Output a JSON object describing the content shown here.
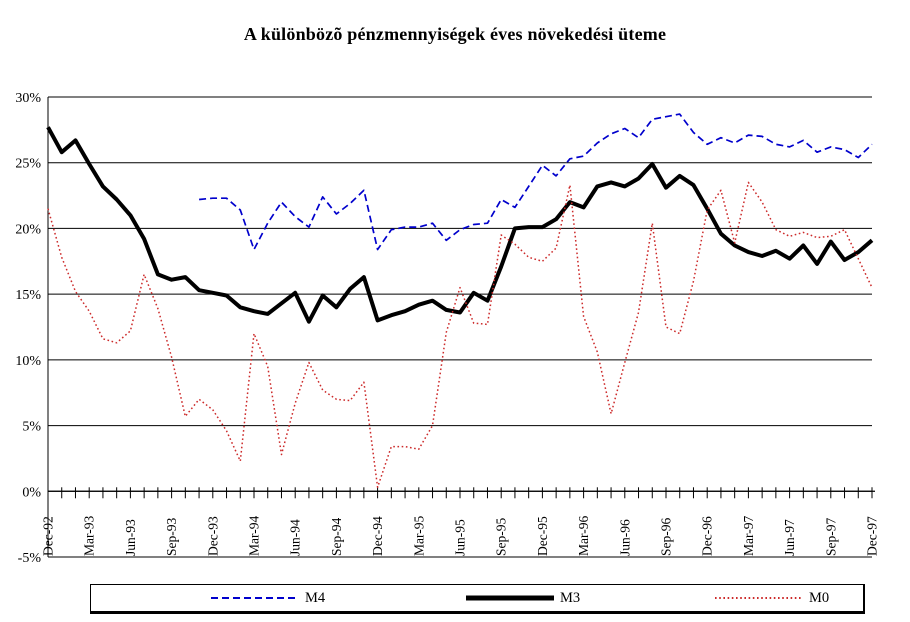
{
  "title": "A különbözõ pénzmennyiségek éves növekedési üteme",
  "legend": [
    {
      "label": "M4",
      "color": "#0000cc",
      "style": "dashed"
    },
    {
      "label": "M3",
      "color": "#000000",
      "style": "solid"
    },
    {
      "label": "M0",
      "color": "#cc2a2a",
      "style": "dotted"
    }
  ],
  "chart_data": {
    "type": "line",
    "title": "A különbözõ pénzmennyiségek éves növekedési üteme",
    "xlabel": "",
    "ylabel": "",
    "ylim": [
      -5,
      30
    ],
    "y_tick_step": 5,
    "y_tick_labels": [
      "-5%",
      "0%",
      "5%",
      "10%",
      "15%",
      "20%",
      "25%",
      "30%"
    ],
    "x_label_every_n_months": 3,
    "x_axis_tick_labels": [
      "Dec-92",
      "Mar-93",
      "Jun-93",
      "Sep-93",
      "Dec-93",
      "Mar-94",
      "Jun-94",
      "Sep-94",
      "Dec-94",
      "Mar-95",
      "Jun-95",
      "Sep-95",
      "Dec-95",
      "Mar-96",
      "Jun-96",
      "Sep-96",
      "Dec-96",
      "Mar-97",
      "Jun-97",
      "Sep-97",
      "Dec-97"
    ],
    "grid": true,
    "legend_position": "bottom",
    "months": [
      "Dec-92",
      "Jan-93",
      "Feb-93",
      "Mar-93",
      "Apr-93",
      "May-93",
      "Jun-93",
      "Jul-93",
      "Aug-93",
      "Sep-93",
      "Oct-93",
      "Nov-93",
      "Dec-93",
      "Jan-94",
      "Feb-94",
      "Mar-94",
      "Apr-94",
      "May-94",
      "Jun-94",
      "Jul-94",
      "Aug-94",
      "Sep-94",
      "Oct-94",
      "Nov-94",
      "Dec-94",
      "Jan-95",
      "Feb-95",
      "Mar-95",
      "Apr-95",
      "May-95",
      "Jun-95",
      "Jul-95",
      "Aug-95",
      "Sep-95",
      "Oct-95",
      "Nov-95",
      "Dec-95",
      "Jan-96",
      "Feb-96",
      "Mar-96",
      "Apr-96",
      "May-96",
      "Jun-96",
      "Jul-96",
      "Aug-96",
      "Sep-96",
      "Oct-96",
      "Nov-96",
      "Dec-96",
      "Jan-97",
      "Feb-97",
      "Mar-97",
      "Apr-97",
      "May-97",
      "Jun-97",
      "Jul-97",
      "Aug-97",
      "Sep-97",
      "Oct-97",
      "Nov-97",
      "Dec-97"
    ],
    "series": [
      {
        "name": "M4",
        "color": "#0000cc",
        "style": "dashed",
        "width": 1.7,
        "values": [
          null,
          null,
          null,
          null,
          null,
          null,
          null,
          null,
          null,
          null,
          null,
          22.2,
          22.3,
          22.3,
          21.4,
          18.4,
          20.4,
          22.0,
          20.9,
          20.1,
          22.4,
          21.1,
          21.9,
          22.9,
          18.4,
          19.9,
          20.1,
          20.1,
          20.4,
          19.1,
          19.9,
          20.3,
          20.4,
          22.2,
          21.6,
          23.2,
          24.8,
          24.0,
          25.3,
          25.5,
          26.5,
          27.2,
          27.6,
          26.9,
          28.3,
          28.5,
          28.7,
          27.3,
          26.4,
          26.9,
          26.5,
          27.1,
          27.0,
          26.4,
          26.2,
          26.7,
          25.8,
          26.2,
          26.0,
          25.4,
          26.4
        ]
      },
      {
        "name": "M3",
        "color": "#000000",
        "style": "solid",
        "width": 4,
        "values": [
          27.7,
          25.8,
          26.7,
          24.9,
          23.2,
          22.2,
          21.0,
          19.2,
          16.5,
          16.1,
          16.3,
          15.3,
          15.1,
          14.9,
          14.0,
          13.7,
          13.5,
          14.3,
          15.1,
          12.9,
          14.9,
          14.0,
          15.4,
          16.3,
          13.0,
          13.4,
          13.7,
          14.2,
          14.5,
          13.8,
          13.6,
          15.1,
          14.5,
          17.1,
          20.0,
          20.1,
          20.1,
          20.7,
          22.0,
          21.6,
          23.2,
          23.5,
          23.2,
          23.8,
          24.9,
          23.1,
          24.0,
          23.3,
          21.5,
          19.6,
          18.7,
          18.2,
          17.9,
          18.3,
          17.7,
          18.7,
          17.3,
          19.0,
          17.6,
          18.2,
          19.1
        ]
      },
      {
        "name": "M0",
        "color": "#cc2a2a",
        "style": "dotted",
        "width": 1.5,
        "values": [
          21.5,
          17.8,
          15.2,
          13.7,
          11.6,
          11.3,
          12.2,
          16.5,
          13.9,
          10.2,
          5.7,
          7.0,
          6.2,
          4.6,
          2.3,
          12.0,
          9.5,
          2.8,
          6.7,
          9.8,
          7.7,
          7.0,
          6.9,
          8.3,
          0.3,
          3.4,
          3.4,
          3.2,
          5.0,
          12.1,
          15.5,
          12.8,
          12.7,
          19.5,
          18.8,
          17.8,
          17.5,
          18.5,
          23.3,
          13.3,
          10.6,
          5.9,
          9.8,
          13.6,
          20.4,
          12.5,
          12.0,
          16.0,
          21.4,
          22.9,
          18.9,
          23.5,
          22.0,
          19.9,
          19.4,
          19.7,
          19.3,
          19.4,
          19.9,
          17.7,
          15.5
        ]
      }
    ]
  }
}
